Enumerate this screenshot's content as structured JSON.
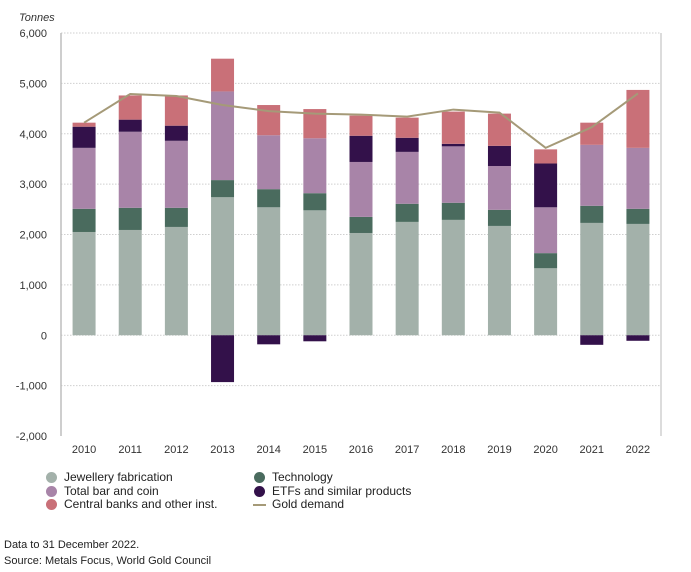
{
  "chart_data": {
    "type": "bar",
    "stacked": true,
    "unit_label": "Tonnes",
    "categories": [
      "2010",
      "2011",
      "2012",
      "2013",
      "2014",
      "2015",
      "2016",
      "2017",
      "2018",
      "2019",
      "2020",
      "2021",
      "2022"
    ],
    "ylim": [
      -2000,
      6000
    ],
    "yticks": [
      -2000,
      -1000,
      0,
      1000,
      2000,
      3000,
      4000,
      5000,
      6000
    ],
    "ytick_labels": [
      "-2,000",
      "-1,000",
      "0",
      "1,000",
      "2,000",
      "3,000",
      "4,000",
      "5,000",
      "6,000"
    ],
    "grid": "horizontal dotted",
    "legend_position": "bottom",
    "series": [
      {
        "name": "Jewellery fabrication",
        "color": "#a3b1aa",
        "values": [
          2050,
          2090,
          2150,
          2740,
          2540,
          2480,
          2030,
          2250,
          2290,
          2170,
          1330,
          2230,
          2210
        ]
      },
      {
        "name": "Technology",
        "color": "#4a6b5e",
        "values": [
          460,
          440,
          380,
          340,
          360,
          340,
          320,
          360,
          340,
          320,
          300,
          340,
          300
        ]
      },
      {
        "name": "Total bar and coin",
        "color": "#a884a8",
        "values": [
          1210,
          1510,
          1330,
          1760,
          1070,
          1090,
          1090,
          1030,
          1120,
          870,
          910,
          1210,
          1210
        ]
      },
      {
        "name": "ETFs and similar products",
        "color": "#33114a",
        "values": [
          420,
          240,
          300,
          -930,
          -180,
          -120,
          520,
          280,
          50,
          400,
          870,
          -190,
          -110
        ]
      },
      {
        "name": "Central banks and other inst.",
        "color": "#c97078",
        "values": [
          80,
          480,
          600,
          650,
          600,
          580,
          400,
          400,
          640,
          640,
          280,
          440,
          1150
        ]
      }
    ],
    "line_series": {
      "name": "Gold demand",
      "color": "#a59a78",
      "values": [
        4220,
        4790,
        4750,
        4570,
        4450,
        4400,
        4380,
        4340,
        4480,
        4420,
        3720,
        4130,
        4800
      ]
    }
  },
  "legend_left": [
    {
      "label": "Jewellery fabrication",
      "color": "#a3b1aa"
    },
    {
      "label": "Total bar and coin",
      "color": "#a884a8"
    },
    {
      "label": "Central banks and other inst.",
      "color": "#c97078"
    }
  ],
  "legend_right": [
    {
      "label": "Technology",
      "color": "#4a6b5e"
    },
    {
      "label": "ETFs and similar products",
      "color": "#33114a"
    },
    {
      "label": "Gold demand",
      "color": "#a59a78"
    }
  ],
  "footer": {
    "note": "Data to 31 December 2022.",
    "source": "Source: Metals Focus, World Gold Council"
  }
}
